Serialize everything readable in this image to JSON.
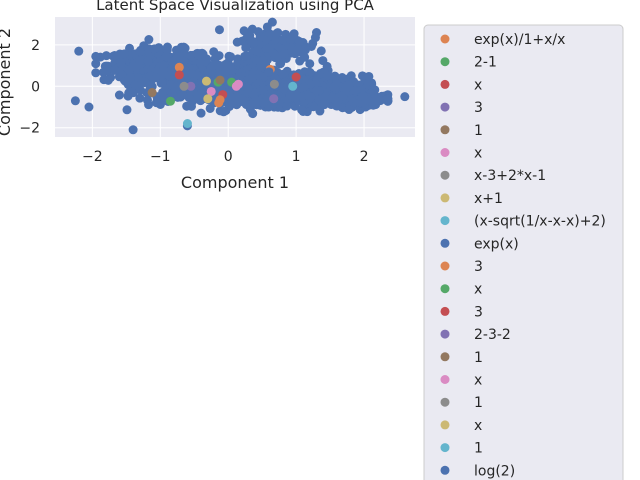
{
  "chart_data": {
    "type": "scatter",
    "title": "Latent Space Visualization using PCA",
    "xlabel": "Component 1",
    "ylabel": "Component 2",
    "xlim": [
      -2.55,
      2.75
    ],
    "ylim": [
      -2.45,
      3.35
    ],
    "xticks": [
      -2,
      -1,
      0,
      1,
      2
    ],
    "yticks": [
      -2,
      0,
      2
    ],
    "xtick_labels": [
      "−2",
      "−1",
      "0",
      "1",
      "2"
    ],
    "ytick_labels": [
      "−2",
      "0",
      "2"
    ],
    "grid": true,
    "legend_position": "right",
    "background_color": "#eaeaf2",
    "background_cloud": {
      "color": "#4c72b0",
      "clusters": [
        {
          "cx": -1.0,
          "cy": 1.0,
          "sx": 0.55,
          "sy": 0.55,
          "n": 420
        },
        {
          "cx": -0.3,
          "cy": 0.2,
          "sx": 0.75,
          "sy": 0.75,
          "n": 520
        },
        {
          "cx": 0.6,
          "cy": 0.0,
          "sx": 0.75,
          "sy": 0.6,
          "n": 480
        },
        {
          "cx": 1.3,
          "cy": -0.3,
          "sx": 0.55,
          "sy": 0.55,
          "n": 320
        },
        {
          "cx": 0.7,
          "cy": 2.0,
          "sx": 0.35,
          "sy": 0.5,
          "n": 180
        },
        {
          "cx": 2.0,
          "cy": -0.7,
          "sx": 0.3,
          "sy": 0.2,
          "n": 60
        }
      ],
      "outliers": [
        {
          "x": -2.25,
          "y": -0.7
        },
        {
          "x": -2.05,
          "y": -1.0
        },
        {
          "x": -2.2,
          "y": 1.7
        },
        {
          "x": 2.6,
          "y": -0.5
        },
        {
          "x": 1.3,
          "y": 2.6
        },
        {
          "x": 0.65,
          "y": 3.1
        },
        {
          "x": -1.4,
          "y": -2.1
        }
      ]
    },
    "series": [
      {
        "name": "exp(x)/1+x/x",
        "color": "#dd8452",
        "x": [
          0.62,
          -0.72,
          -0.14
        ],
        "y": [
          0.82,
          0.92,
          -0.8
        ]
      },
      {
        "name": "2-1",
        "color": "#55a868",
        "x": [
          -0.85
        ],
        "y": [
          -0.72
        ]
      },
      {
        "name": "x",
        "color": "#c44e52",
        "x": [
          -0.72,
          -0.08
        ],
        "y": [
          0.55,
          -0.4
        ]
      },
      {
        "name": "3",
        "color": "#8172b3",
        "x": [
          -0.55
        ],
        "y": [
          0.0
        ]
      },
      {
        "name": "1",
        "color": "#937860",
        "x": [
          -1.12
        ],
        "y": [
          -0.3
        ]
      },
      {
        "name": "x",
        "color": "#da8bc3",
        "x": [
          -0.25
        ],
        "y": [
          -0.25
        ]
      },
      {
        "name": "x-3+2*x-1",
        "color": "#8c8c8c",
        "x": [
          -0.65
        ],
        "y": [
          0.0
        ]
      },
      {
        "name": "x+1",
        "color": "#ccb974",
        "x": [
          -0.3
        ],
        "y": [
          -0.6
        ]
      },
      {
        "name": "(x-sqrt(1/x-x-x)+2)",
        "color": "#64b5cd",
        "x": [
          -0.6
        ],
        "y": [
          -1.8
        ]
      },
      {
        "name": "exp(x)",
        "color": "#4c72b0",
        "x": [
          1.3
        ],
        "y": [
          -0.2
        ]
      },
      {
        "name": "3",
        "color": "#dd8452",
        "x": [
          -0.12
        ],
        "y": [
          -0.65
        ]
      },
      {
        "name": "x",
        "color": "#55a868",
        "x": [
          -0.15,
          0.05
        ],
        "y": [
          0.2,
          0.2
        ]
      },
      {
        "name": "3",
        "color": "#c44e52",
        "x": [
          1.0
        ],
        "y": [
          0.45
        ]
      },
      {
        "name": "2-3-2",
        "color": "#8172b3",
        "x": [
          0.67
        ],
        "y": [
          -0.6
        ]
      },
      {
        "name": "1",
        "color": "#937860",
        "x": [
          -0.12
        ],
        "y": [
          0.3
        ]
      },
      {
        "name": "x",
        "color": "#da8bc3",
        "x": [
          0.12,
          0.15
        ],
        "y": [
          0.0,
          0.1
        ]
      },
      {
        "name": "1",
        "color": "#8c8c8c",
        "x": [
          0.68
        ],
        "y": [
          0.1
        ]
      },
      {
        "name": "x",
        "color": "#ccb974",
        "x": [
          -0.32
        ],
        "y": [
          0.25
        ]
      },
      {
        "name": "1",
        "color": "#64b5cd",
        "x": [
          0.95
        ],
        "y": [
          0.0
        ]
      },
      {
        "name": "log(2)",
        "color": "#4c72b0",
        "x": [
          0.6
        ],
        "y": [
          0.7
        ]
      }
    ]
  }
}
